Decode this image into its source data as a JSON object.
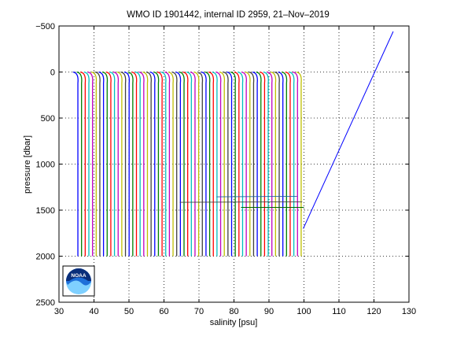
{
  "chart_data": {
    "type": "line",
    "title": "WMO ID 1901442, internal ID 2959, 21–Nov–2019",
    "xlabel": "salinity [psu]",
    "ylabel": "pressure [dbar]",
    "xlim": [
      30,
      130
    ],
    "ylim": [
      -500,
      2500
    ],
    "y_reversed": true,
    "grid": true,
    "grid_style": "dotted",
    "x_ticks": [
      "30",
      "40",
      "50",
      "60",
      "70",
      "80",
      "90",
      "100",
      "110",
      "120",
      "130"
    ],
    "y_ticks": [
      "−500",
      "0",
      "500",
      "1000",
      "1500",
      "2000",
      "2500"
    ],
    "y_tick_values": [
      -500,
      0,
      500,
      1000,
      1500,
      2000,
      2500
    ],
    "profile_colors": [
      "#0000ff",
      "#008000",
      "#ff0000",
      "#00bfbf",
      "#bf00bf",
      "#bfbf00",
      "#404040"
    ],
    "profiles": {
      "count": 62,
      "x_start": 35.4,
      "x_end": 99.2,
      "pressure_top": 0,
      "pressure_bottom": 2000,
      "surface_hook_width": 1.4,
      "surface_hook_depth": 120
    },
    "outlier_series": {
      "name": "",
      "color": "#0000ff",
      "x": [
        99.8,
        125.5
      ],
      "y": [
        1700,
        -440
      ]
    },
    "horizontal_traces": [
      {
        "x": [
          64.5,
          99.5
        ],
        "y": [
          1415,
          1410
        ],
        "color": "#404040"
      },
      {
        "x": [
          82,
          100
        ],
        "y": [
          1470,
          1470
        ],
        "color": "#006400"
      },
      {
        "x": [
          75,
          98
        ],
        "y": [
          1355,
          1350
        ],
        "color": "#2060a0"
      }
    ]
  },
  "logo": {
    "name": "noaa-logo",
    "text": "NOAA"
  }
}
